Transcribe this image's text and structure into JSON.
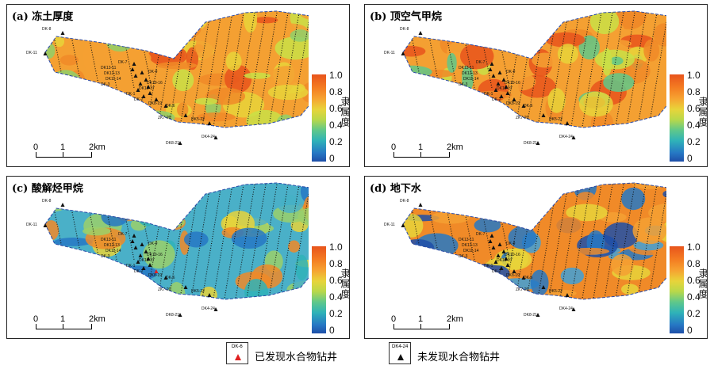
{
  "panels": [
    {
      "id": "a",
      "title": "(a) 冻土厚度"
    },
    {
      "id": "b",
      "title": "(b) 顶空气甲烷"
    },
    {
      "id": "c",
      "title": "(c) 酸解烃甲烷"
    },
    {
      "id": "d",
      "title": "(d) 地下水"
    }
  ],
  "colorbar": {
    "title": "隶属度",
    "ticks": [
      "1.0",
      "0.8",
      "0.6",
      "0.4",
      "0.2",
      "0"
    ]
  },
  "scalebar": {
    "labels": [
      "0",
      "1",
      "2km"
    ]
  },
  "wells": {
    "left_label": "DK-11",
    "top_label": "DK-8",
    "cluster_labels": [
      "DK-7",
      "DK13-11",
      "DK12-13",
      "DK11-14",
      "DK-9",
      "DK-3",
      "DK10-16",
      "DK10-17",
      "DK-1",
      "DK-2",
      "DK8-19",
      "DK-6"
    ],
    "mid_labels": [
      "ZK7-20",
      "DK5-22"
    ],
    "bottom_labels": [
      "DK8-21",
      "DK4-24"
    ]
  },
  "legend": {
    "found": {
      "code": "DK-6",
      "text": "已发现水合物钻井",
      "color": "#e02020"
    },
    "notfound": {
      "code": "DK4-24",
      "text": "未发现水合物钻井",
      "color": "#111111"
    }
  },
  "colors": {
    "high": "#e8541c",
    "mid": "#e8d43a",
    "low": "#1f4fa8",
    "border": "#2a4aa8"
  }
}
